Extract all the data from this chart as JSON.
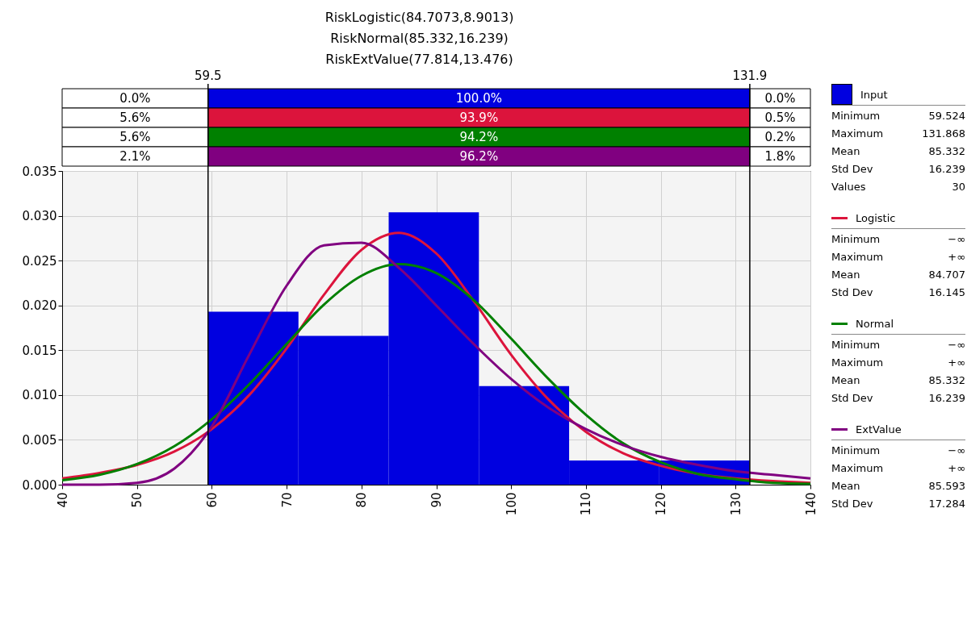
{
  "chart_data": {
    "type": "histogram",
    "title": "RiskLogistic(84.7073,8.9013)\nRiskNormal(85.332,16.239)\nRiskExtValue(77.814,13.476)",
    "xlim": [
      40,
      140
    ],
    "xticks": [
      40,
      50,
      60,
      70,
      80,
      90,
      100,
      110,
      120,
      130,
      140
    ],
    "ylim": [
      0,
      0.035
    ],
    "yticks": [
      {
        "value": 0,
        "label": "0.000"
      },
      {
        "value": 0.005,
        "label": "0.005"
      },
      {
        "value": 0.01,
        "label": "0.010"
      },
      {
        "value": 0.015,
        "label": "0.015"
      },
      {
        "value": 0.02,
        "label": "0.020"
      },
      {
        "value": 0.025,
        "label": "0.025"
      },
      {
        "value": 0.03,
        "label": "0.030"
      },
      {
        "value": 0.035,
        "label": "0.035"
      }
    ],
    "grid": true,
    "legend": "right",
    "series": [
      {
        "name": "Input",
        "type": "histogram",
        "color": "#0000e0",
        "bins": [
          59.524,
          71.581,
          83.638,
          95.696,
          107.753,
          119.81,
          131.868
        ],
        "values": [
          0.0193,
          0.0166,
          0.0304,
          0.011,
          0.0027,
          0.0027
        ]
      },
      {
        "name": "Logistic",
        "type": "line",
        "color": "#dc143c",
        "x": [
          40,
          45,
          50,
          55,
          60,
          65,
          70,
          75,
          80,
          85,
          90,
          95,
          100,
          105,
          110,
          115,
          120,
          125,
          130,
          135,
          140
        ],
        "values": [
          0.0007,
          0.0013,
          0.0022,
          0.0037,
          0.0062,
          0.01,
          0.0152,
          0.0212,
          0.0262,
          0.0281,
          0.0258,
          0.0205,
          0.0145,
          0.0095,
          0.0059,
          0.0035,
          0.0021,
          0.0012,
          0.0007,
          0.0004,
          0.0002
        ]
      },
      {
        "name": "Normal",
        "type": "line",
        "color": "#008000",
        "x": [
          40,
          45,
          50,
          55,
          60,
          65,
          70,
          75,
          80,
          85,
          90,
          95,
          100,
          105,
          110,
          115,
          120,
          125,
          130,
          135,
          140
        ],
        "values": [
          0.0005,
          0.0011,
          0.0023,
          0.0043,
          0.0073,
          0.0112,
          0.0157,
          0.0201,
          0.0233,
          0.0246,
          0.0236,
          0.0206,
          0.0163,
          0.0118,
          0.0078,
          0.0046,
          0.0025,
          0.0012,
          0.0006,
          0.0002,
          0.0001
        ]
      },
      {
        "name": "ExtValue",
        "type": "line",
        "color": "#800080",
        "x": [
          40,
          45,
          50,
          55,
          60,
          65,
          70,
          75,
          80,
          85,
          90,
          95,
          100,
          105,
          110,
          115,
          120,
          125,
          130,
          135,
          140
        ],
        "values": [
          0,
          0,
          0.0002,
          0.0018,
          0.0065,
          0.0145,
          0.0222,
          0.0267,
          0.027,
          0.0242,
          0.02,
          0.0157,
          0.0118,
          0.0086,
          0.0062,
          0.0044,
          0.0031,
          0.0022,
          0.0015,
          0.0011,
          0.0007
        ]
      }
    ],
    "ref_lines": [
      {
        "axis": "x",
        "value": 59.5,
        "label": "59.5",
        "color": "#000000"
      },
      {
        "axis": "x",
        "value": 131.9,
        "label": "131.9",
        "color": "#000000"
      }
    ],
    "annotations": [
      "0.0%",
      "100.0%",
      "0.0%",
      "5.6%",
      "93.9%",
      "0.5%",
      "5.6%",
      "94.2%",
      "0.2%",
      "2.1%",
      "96.2%",
      "1.8%",
      "Minimum",
      "59.524",
      "Maximum",
      "131.868",
      "Mean",
      "85.332",
      "Std Dev",
      "16.239",
      "Values",
      "30",
      "Minimum",
      "−∞",
      "Maximum",
      "+∞",
      "Mean",
      "84.707",
      "Std Dev",
      "16.145",
      "Minimum",
      "−∞",
      "Maximum",
      "+∞",
      "Mean",
      "85.332",
      "Std Dev",
      "16.239",
      "Minimum",
      "−∞",
      "Maximum",
      "+∞",
      "Mean",
      "85.593",
      "Std Dev",
      "17.284"
    ]
  }
}
